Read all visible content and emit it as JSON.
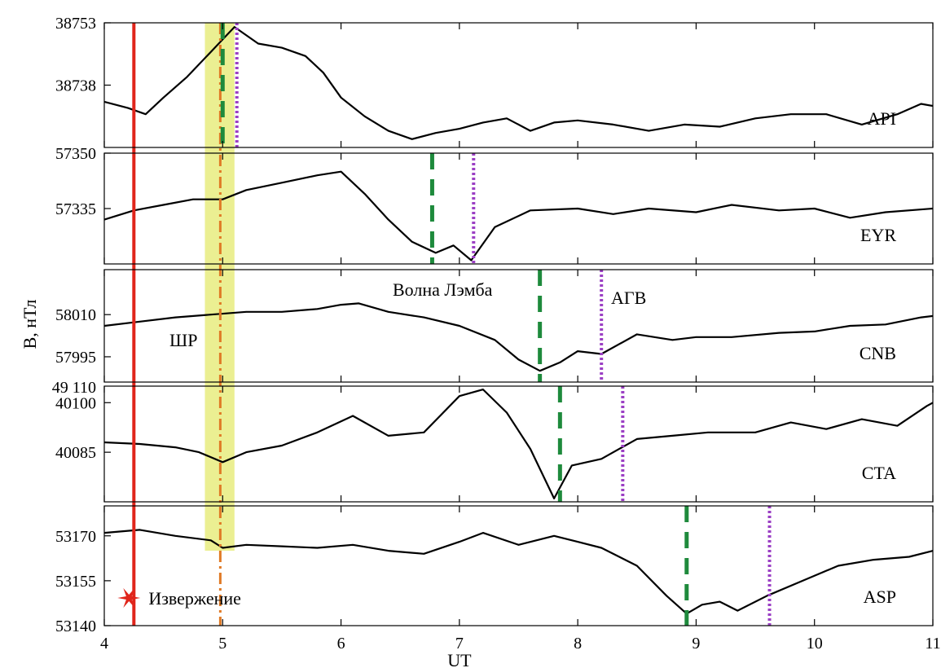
{
  "chart_data": {
    "type": "line",
    "xlabel": "UT",
    "ylabel": "B, нТл",
    "xlim": [
      4,
      11
    ],
    "x_ticks": [
      4,
      5,
      6,
      7,
      8,
      9,
      10,
      11
    ],
    "grid": false,
    "colors": {
      "line": "#000000",
      "eruption": "#e0251b",
      "band": "#e4ea6e",
      "shock": "#e07a26",
      "lamb": "#1e8a3c",
      "agw": "#9b3fc4"
    },
    "panels": [
      {
        "station": "API",
        "ylim": [
          38723,
          38753
        ],
        "y_ticks": [
          "38753",
          "38738"
        ],
        "y_tick_values": [
          38753,
          38738
        ],
        "lamb_time": 5.0,
        "agw_time": 5.12,
        "x": [
          4.0,
          4.2,
          4.35,
          4.5,
          4.7,
          4.9,
          5.0,
          5.1,
          5.3,
          5.5,
          5.7,
          5.85,
          6.0,
          6.2,
          6.4,
          6.6,
          6.8,
          7.0,
          7.2,
          7.4,
          7.6,
          7.8,
          8.0,
          8.3,
          8.6,
          8.9,
          9.2,
          9.5,
          9.8,
          10.1,
          10.4,
          10.7,
          10.9,
          11.0
        ],
        "y": [
          38734,
          38732.5,
          38731,
          38735,
          38740,
          38746,
          38749,
          38752,
          38748,
          38747,
          38745,
          38741,
          38735,
          38730.5,
          38727,
          38725,
          38726.5,
          38727.5,
          38729,
          38730,
          38727,
          38729,
          38729.5,
          38728.5,
          38727,
          38728.5,
          38728,
          38730,
          38731,
          38731,
          38728.5,
          38731,
          38733.5,
          38733
        ]
      },
      {
        "station": "EYR",
        "ylim": [
          57320,
          57350
        ],
        "y_ticks": [
          "57350",
          "57335"
        ],
        "y_tick_values": [
          57350,
          57335
        ],
        "lamb_time": 6.77,
        "agw_time": 7.12,
        "x": [
          4.0,
          4.25,
          4.5,
          4.75,
          5.0,
          5.2,
          5.5,
          5.8,
          6.0,
          6.2,
          6.4,
          6.6,
          6.8,
          6.95,
          7.1,
          7.3,
          7.6,
          8.0,
          8.3,
          8.6,
          9.0,
          9.3,
          9.7,
          10.0,
          10.3,
          10.6,
          11.0
        ],
        "y": [
          57332,
          57334.5,
          57336,
          57337.5,
          57337.5,
          57340,
          57342,
          57344,
          57345,
          57339,
          57332,
          57326,
          57323,
          57325,
          57321,
          57330,
          57334.5,
          57335,
          57333.5,
          57335,
          57334,
          57336,
          57334.5,
          57335,
          57332.5,
          57334,
          57335
        ]
      },
      {
        "station": "CNB",
        "ylim": [
          57986,
          58026
        ],
        "y_ticks": [
          "58010",
          "57995"
        ],
        "y_tick_values": [
          58010,
          57995
        ],
        "lamb_time": 7.68,
        "agw_time": 8.2,
        "x": [
          4.0,
          4.3,
          4.6,
          4.9,
          5.2,
          5.5,
          5.8,
          6.0,
          6.15,
          6.4,
          6.7,
          7.0,
          7.3,
          7.5,
          7.68,
          7.85,
          8.0,
          8.2,
          8.5,
          8.8,
          9.0,
          9.3,
          9.7,
          10.0,
          10.3,
          10.6,
          10.9,
          11.0
        ],
        "y": [
          58006,
          58007.5,
          58009,
          58010,
          58011,
          58011,
          58012,
          58013.5,
          58014,
          58011,
          58009,
          58006,
          58001,
          57994,
          57990,
          57993,
          57997,
          57996,
          58003,
          58001,
          58002,
          58002,
          58003.5,
          58004,
          58006,
          58006.5,
          58009,
          58009.5
        ]
      },
      {
        "station": "CTA",
        "ylim": [
          40070,
          40105
        ],
        "y_ticks": [
          "40100",
          "40085"
        ],
        "y_tick_values": [
          40100,
          40085
        ],
        "lamb_time": 7.85,
        "agw_time": 8.38,
        "x": [
          4.0,
          4.3,
          4.6,
          4.8,
          5.0,
          5.2,
          5.5,
          5.8,
          6.1,
          6.4,
          6.7,
          7.0,
          7.2,
          7.4,
          7.6,
          7.8,
          7.95,
          8.2,
          8.5,
          8.8,
          9.1,
          9.5,
          9.8,
          10.1,
          10.4,
          10.7,
          10.95,
          11.0
        ],
        "y": [
          40088,
          40087.5,
          40086.5,
          40085,
          40082,
          40085,
          40087,
          40091,
          40096,
          40090,
          40091,
          40102,
          40104,
          40097,
          40086,
          40071,
          40081,
          40083,
          40089,
          40090,
          40091,
          40091,
          40094,
          40092,
          40095,
          40093,
          40099,
          40100
        ]
      },
      {
        "station": "ASP",
        "ylim": [
          53140,
          53180
        ],
        "y_ticks": [
          "53170",
          "53155",
          "53140"
        ],
        "y_tick_values": [
          53170,
          53155,
          53140
        ],
        "lamb_time": 8.92,
        "agw_time": 9.62,
        "x": [
          4.0,
          4.3,
          4.6,
          4.9,
          5.0,
          5.2,
          5.5,
          5.8,
          6.1,
          6.4,
          6.7,
          7.0,
          7.2,
          7.5,
          7.8,
          8.0,
          8.2,
          8.5,
          8.75,
          8.92,
          9.05,
          9.2,
          9.35,
          9.6,
          9.9,
          10.2,
          10.5,
          10.8,
          11.0
        ],
        "y": [
          53171,
          53172,
          53170,
          53168.5,
          53166,
          53167,
          53166.5,
          53166,
          53167,
          53165,
          53164,
          53168,
          53171,
          53167,
          53170,
          53168,
          53166,
          53160,
          53150,
          53144,
          53147,
          53148,
          53145,
          53150,
          53155,
          53160,
          53162,
          53163,
          53165
        ]
      }
    ],
    "eruption_time": 4.25,
    "eruption_label": "Извержение",
    "shock_time": 4.98,
    "band": {
      "x0": 4.85,
      "x1": 5.1,
      "label": "ШР"
    },
    "lamb_label": "Волна Лэмба",
    "agw_label": "АГВ",
    "extra_tick_label": "49 110"
  }
}
